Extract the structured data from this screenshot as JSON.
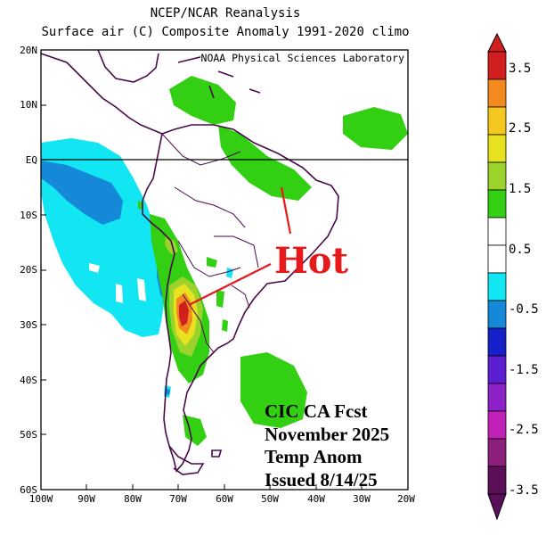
{
  "title": {
    "line1": "NCEP/NCAR Reanalysis",
    "line2": "Surface air (C) Composite Anomaly 1991-2020 climo"
  },
  "credit": "NOAA Physical Sciences Laboratory",
  "annotation": {
    "hot": "Hot",
    "fcst_lines": [
      "CIC CA Fcst",
      "November 2025",
      "Temp Anom",
      "Issued 8/14/25"
    ]
  },
  "map": {
    "lat_range": [
      -60,
      20
    ],
    "lon_range": [
      -100,
      -20
    ],
    "lat_ticks": [
      "20N",
      "10N",
      "EQ",
      "10S",
      "20S",
      "30S",
      "40S",
      "50S",
      "60S"
    ],
    "lon_ticks": [
      "100W",
      "90W",
      "80W",
      "70W",
      "60W",
      "50W",
      "40W",
      "30W",
      "20W"
    ]
  },
  "colorbar": {
    "labels": [
      "3.5",
      "2.5",
      "1.5",
      "0.5",
      "-0.5",
      "-1.5",
      "-2.5",
      "-3.5"
    ],
    "colors": [
      "#d11f1f",
      "#f28a1e",
      "#f5c81f",
      "#e6e21f",
      "#9bd22c",
      "#33cf12",
      "#ffffff",
      "#ffffff",
      "#12e6f2",
      "#1589d8",
      "#1520c8",
      "#5b1ed0",
      "#8c21c8",
      "#c021b7",
      "#8c1f7a",
      "#5a0f58"
    ]
  }
}
